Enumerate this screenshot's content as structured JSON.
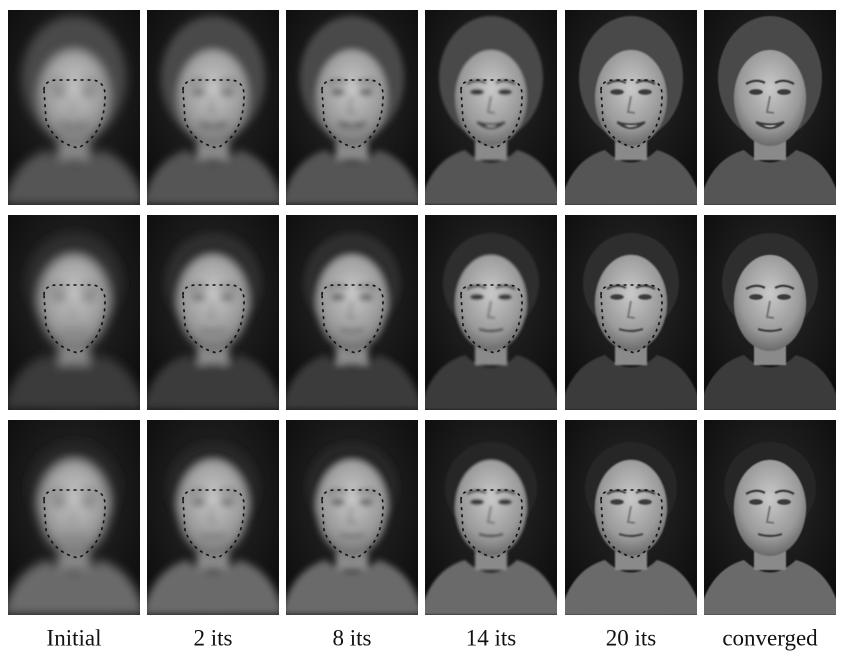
{
  "captions": [
    "Initial",
    "2 its",
    "8 its",
    "14 its",
    "20 its",
    "converged"
  ]
}
